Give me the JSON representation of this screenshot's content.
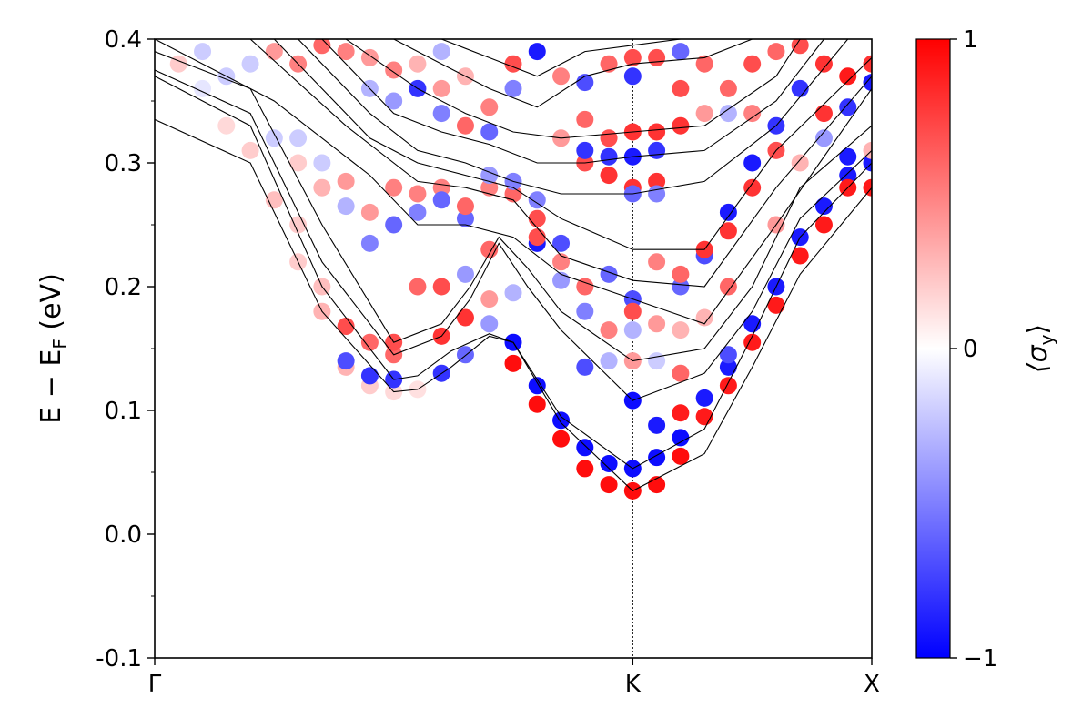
{
  "chart_data": {
    "type": "scatter",
    "ylabel": "E − E",
    "ylabel_subscript": "F",
    "ylabel_unit": " (eV)",
    "ylim": [
      -0.1,
      0.4
    ],
    "yticks": [
      -0.1,
      0.0,
      0.1,
      0.2,
      0.3,
      0.4
    ],
    "ytick_labels": [
      "-0.1",
      "0.0",
      "0.1",
      "0.2",
      "0.3",
      "0.4"
    ],
    "xlim": [
      0,
      1.5
    ],
    "xticks": [
      0,
      1.0,
      1.5
    ],
    "xtick_labels": [
      "Γ",
      "K",
      "X"
    ],
    "k_marker": 1.0,
    "colorbar": {
      "label_prefix": "⟨σ",
      "label_subscript": "y",
      "label_suffix": "⟩",
      "range": [
        -1,
        1
      ],
      "ticks": [
        1,
        0,
        -1
      ],
      "tick_labels": [
        "1",
        "0",
        "−1"
      ],
      "colors": {
        "low": "#0000ff",
        "mid": "#ffffff",
        "high": "#ff0000"
      }
    },
    "bands": [
      {
        "x": [
          0,
          0.2,
          0.35,
          0.5,
          0.55,
          0.62,
          0.7,
          0.75,
          0.85,
          1.0,
          1.15,
          1.25,
          1.35,
          1.5
        ],
        "y": [
          0.335,
          0.3,
          0.18,
          0.115,
          0.117,
          0.135,
          0.16,
          0.155,
          0.09,
          0.035,
          0.065,
          0.135,
          0.21,
          0.28
        ]
      },
      {
        "x": [
          0,
          0.2,
          0.35,
          0.5,
          0.55,
          0.62,
          0.7,
          0.75,
          0.85,
          1.0,
          1.15,
          1.25,
          1.35,
          1.5
        ],
        "y": [
          0.37,
          0.33,
          0.2,
          0.125,
          0.128,
          0.148,
          0.162,
          0.155,
          0.095,
          0.053,
          0.085,
          0.16,
          0.24,
          0.3
        ]
      },
      {
        "x": [
          0,
          0.2,
          0.35,
          0.5,
          0.6,
          0.66,
          0.72,
          0.78,
          0.85,
          1.0,
          1.15,
          1.25,
          1.35,
          1.5
        ],
        "y": [
          0.375,
          0.34,
          0.22,
          0.145,
          0.16,
          0.19,
          0.235,
          0.2,
          0.165,
          0.108,
          0.13,
          0.18,
          0.255,
          0.31
        ]
      },
      {
        "x": [
          0,
          0.2,
          0.35,
          0.5,
          0.6,
          0.66,
          0.72,
          0.78,
          0.85,
          1.0,
          1.15,
          1.25,
          1.35,
          1.5
        ],
        "y": [
          0.39,
          0.36,
          0.25,
          0.155,
          0.17,
          0.2,
          0.24,
          0.215,
          0.18,
          0.14,
          0.15,
          0.2,
          0.28,
          0.33
        ]
      },
      {
        "x": [
          0,
          0.25,
          0.45,
          0.55,
          0.65,
          0.75,
          0.85,
          1.0,
          1.15,
          1.3,
          1.5
        ],
        "y": [
          0.4,
          0.35,
          0.29,
          0.25,
          0.25,
          0.24,
          0.21,
          0.19,
          0.17,
          0.25,
          0.36
        ]
      },
      {
        "x": [
          0.2,
          0.4,
          0.55,
          0.65,
          0.75,
          0.85,
          1.0,
          1.15,
          1.3,
          1.5
        ],
        "y": [
          0.4,
          0.33,
          0.285,
          0.28,
          0.27,
          0.225,
          0.205,
          0.2,
          0.28,
          0.37
        ]
      },
      {
        "x": [
          0.25,
          0.45,
          0.55,
          0.65,
          0.75,
          0.85,
          1.0,
          1.15,
          1.3,
          1.5
        ],
        "y": [
          0.4,
          0.32,
          0.3,
          0.29,
          0.28,
          0.255,
          0.23,
          0.23,
          0.31,
          0.385
        ]
      },
      {
        "x": [
          0.3,
          0.45,
          0.55,
          0.65,
          0.75,
          0.85,
          1.0,
          1.15,
          1.3,
          1.45
        ],
        "y": [
          0.4,
          0.34,
          0.31,
          0.3,
          0.285,
          0.275,
          0.275,
          0.285,
          0.33,
          0.4
        ]
      },
      {
        "x": [
          0.35,
          0.5,
          0.6,
          0.7,
          0.8,
          0.9,
          1.0,
          1.15,
          1.3,
          1.4
        ],
        "y": [
          0.4,
          0.34,
          0.325,
          0.315,
          0.3,
          0.3,
          0.305,
          0.31,
          0.35,
          0.4
        ]
      },
      {
        "x": [
          0.4,
          0.55,
          0.65,
          0.75,
          0.85,
          1.0,
          1.15,
          1.3,
          1.35
        ],
        "y": [
          0.4,
          0.36,
          0.34,
          0.325,
          0.32,
          0.325,
          0.33,
          0.37,
          0.4
        ]
      },
      {
        "x": [
          0.5,
          0.6,
          0.7,
          0.8,
          0.9,
          1.0,
          1.15,
          1.25
        ],
        "y": [
          0.4,
          0.38,
          0.36,
          0.345,
          0.37,
          0.38,
          0.385,
          0.4
        ]
      },
      {
        "x": [
          0.6,
          0.7,
          0.8,
          0.9,
          1.0,
          1.1
        ],
        "y": [
          0.4,
          0.385,
          0.37,
          0.39,
          0.395,
          0.4
        ]
      }
    ],
    "points": [
      {
        "x": 0.5,
        "y": 0.115,
        "c": 0.15
      },
      {
        "x": 0.55,
        "y": 0.117,
        "c": 0.12
      },
      {
        "x": 0.45,
        "y": 0.12,
        "c": 0.2
      },
      {
        "x": 0.4,
        "y": 0.135,
        "c": 0.3
      },
      {
        "x": 0.5,
        "y": 0.125,
        "c": -0.8
      },
      {
        "x": 0.45,
        "y": 0.128,
        "c": -0.8
      },
      {
        "x": 0.4,
        "y": 0.14,
        "c": -0.7
      },
      {
        "x": 0.6,
        "y": 0.13,
        "c": -0.8
      },
      {
        "x": 0.65,
        "y": 0.145,
        "c": -0.6
      },
      {
        "x": 0.5,
        "y": 0.145,
        "c": 0.6
      },
      {
        "x": 0.5,
        "y": 0.155,
        "c": 0.7
      },
      {
        "x": 0.45,
        "y": 0.155,
        "c": 0.6
      },
      {
        "x": 0.4,
        "y": 0.168,
        "c": 0.7
      },
      {
        "x": 0.6,
        "y": 0.16,
        "c": 0.8
      },
      {
        "x": 0.65,
        "y": 0.175,
        "c": 0.8
      },
      {
        "x": 0.7,
        "y": 0.17,
        "c": -0.4
      },
      {
        "x": 0.7,
        "y": 0.19,
        "c": 0.4
      },
      {
        "x": 0.35,
        "y": 0.18,
        "c": 0.3
      },
      {
        "x": 0.35,
        "y": 0.2,
        "c": 0.25
      },
      {
        "x": 0.3,
        "y": 0.22,
        "c": 0.2
      },
      {
        "x": 0.75,
        "y": 0.155,
        "c": -0.95
      },
      {
        "x": 0.75,
        "y": 0.138,
        "c": 0.95
      },
      {
        "x": 0.8,
        "y": 0.12,
        "c": -0.95
      },
      {
        "x": 0.8,
        "y": 0.105,
        "c": 0.95
      },
      {
        "x": 0.85,
        "y": 0.092,
        "c": -0.95
      },
      {
        "x": 0.85,
        "y": 0.077,
        "c": 0.95
      },
      {
        "x": 0.9,
        "y": 0.07,
        "c": -0.95
      },
      {
        "x": 0.9,
        "y": 0.053,
        "c": 0.95
      },
      {
        "x": 0.95,
        "y": 0.057,
        "c": -0.95
      },
      {
        "x": 0.95,
        "y": 0.04,
        "c": 0.95
      },
      {
        "x": 1.0,
        "y": 0.053,
        "c": -0.95
      },
      {
        "x": 1.0,
        "y": 0.035,
        "c": 0.95
      },
      {
        "x": 1.05,
        "y": 0.062,
        "c": -0.95
      },
      {
        "x": 1.05,
        "y": 0.04,
        "c": 0.95
      },
      {
        "x": 1.1,
        "y": 0.078,
        "c": -0.95
      },
      {
        "x": 1.1,
        "y": 0.063,
        "c": 0.95
      },
      {
        "x": 1.0,
        "y": 0.108,
        "c": -0.95
      },
      {
        "x": 1.05,
        "y": 0.088,
        "c": -0.9
      },
      {
        "x": 1.1,
        "y": 0.098,
        "c": 0.9
      },
      {
        "x": 1.15,
        "y": 0.11,
        "c": -0.9
      },
      {
        "x": 1.15,
        "y": 0.095,
        "c": 0.9
      },
      {
        "x": 1.2,
        "y": 0.135,
        "c": -0.9
      },
      {
        "x": 1.2,
        "y": 0.12,
        "c": 0.9
      },
      {
        "x": 1.25,
        "y": 0.17,
        "c": -0.9
      },
      {
        "x": 1.25,
        "y": 0.155,
        "c": 0.9
      },
      {
        "x": 1.3,
        "y": 0.2,
        "c": -0.9
      },
      {
        "x": 1.3,
        "y": 0.185,
        "c": 0.9
      },
      {
        "x": 1.35,
        "y": 0.24,
        "c": -0.9
      },
      {
        "x": 1.35,
        "y": 0.225,
        "c": 0.9
      },
      {
        "x": 1.4,
        "y": 0.265,
        "c": -0.9
      },
      {
        "x": 1.4,
        "y": 0.25,
        "c": 0.9
      },
      {
        "x": 1.45,
        "y": 0.29,
        "c": -0.9
      },
      {
        "x": 1.45,
        "y": 0.28,
        "c": 0.9
      },
      {
        "x": 1.5,
        "y": 0.3,
        "c": -0.9
      },
      {
        "x": 1.5,
        "y": 0.28,
        "c": 0.9
      },
      {
        "x": 1.45,
        "y": 0.305,
        "c": -0.9
      },
      {
        "x": 1.4,
        "y": 0.34,
        "c": 0.8
      },
      {
        "x": 1.45,
        "y": 0.345,
        "c": -0.8
      },
      {
        "x": 1.5,
        "y": 0.365,
        "c": -0.9
      },
      {
        "x": 1.45,
        "y": 0.37,
        "c": 0.9
      },
      {
        "x": 1.5,
        "y": 0.38,
        "c": 0.8
      },
      {
        "x": 1.4,
        "y": 0.38,
        "c": 0.8
      },
      {
        "x": 1.35,
        "y": 0.36,
        "c": -0.8
      },
      {
        "x": 1.3,
        "y": 0.33,
        "c": -0.8
      },
      {
        "x": 1.25,
        "y": 0.3,
        "c": -0.9
      },
      {
        "x": 1.2,
        "y": 0.26,
        "c": -0.9
      },
      {
        "x": 1.15,
        "y": 0.225,
        "c": -0.7
      },
      {
        "x": 1.1,
        "y": 0.2,
        "c": -0.6
      },
      {
        "x": 1.25,
        "y": 0.28,
        "c": 0.8
      },
      {
        "x": 1.3,
        "y": 0.31,
        "c": 0.7
      },
      {
        "x": 1.2,
        "y": 0.245,
        "c": 0.8
      },
      {
        "x": 1.15,
        "y": 0.23,
        "c": 0.8
      },
      {
        "x": 1.1,
        "y": 0.21,
        "c": 0.6
      },
      {
        "x": 1.05,
        "y": 0.22,
        "c": 0.5
      },
      {
        "x": 1.0,
        "y": 0.19,
        "c": -0.7
      },
      {
        "x": 1.0,
        "y": 0.18,
        "c": 0.7
      },
      {
        "x": 0.95,
        "y": 0.21,
        "c": -0.6
      },
      {
        "x": 0.9,
        "y": 0.2,
        "c": 0.6
      },
      {
        "x": 0.85,
        "y": 0.235,
        "c": -0.7
      },
      {
        "x": 0.85,
        "y": 0.22,
        "c": 0.5
      },
      {
        "x": 0.8,
        "y": 0.255,
        "c": 0.7
      },
      {
        "x": 0.8,
        "y": 0.27,
        "c": -0.5
      },
      {
        "x": 0.75,
        "y": 0.275,
        "c": 0.6
      },
      {
        "x": 0.75,
        "y": 0.285,
        "c": -0.5
      },
      {
        "x": 0.7,
        "y": 0.28,
        "c": 0.5
      },
      {
        "x": 0.7,
        "y": 0.29,
        "c": -0.4
      },
      {
        "x": 0.65,
        "y": 0.255,
        "c": -0.6
      },
      {
        "x": 0.65,
        "y": 0.265,
        "c": 0.6
      },
      {
        "x": 0.6,
        "y": 0.28,
        "c": 0.5
      },
      {
        "x": 0.6,
        "y": 0.27,
        "c": -0.6
      },
      {
        "x": 0.55,
        "y": 0.26,
        "c": -0.5
      },
      {
        "x": 0.55,
        "y": 0.275,
        "c": 0.5
      },
      {
        "x": 0.5,
        "y": 0.25,
        "c": -0.6
      },
      {
        "x": 0.5,
        "y": 0.28,
        "c": 0.5
      },
      {
        "x": 0.45,
        "y": 0.26,
        "c": 0.4
      },
      {
        "x": 0.45,
        "y": 0.235,
        "c": -0.5
      },
      {
        "x": 0.4,
        "y": 0.265,
        "c": -0.3
      },
      {
        "x": 0.4,
        "y": 0.285,
        "c": 0.4
      },
      {
        "x": 0.9,
        "y": 0.3,
        "c": 0.7
      },
      {
        "x": 0.9,
        "y": 0.31,
        "c": -0.8
      },
      {
        "x": 0.95,
        "y": 0.305,
        "c": -0.8
      },
      {
        "x": 1.0,
        "y": 0.305,
        "c": -0.9
      },
      {
        "x": 1.05,
        "y": 0.31,
        "c": -0.8
      },
      {
        "x": 0.95,
        "y": 0.29,
        "c": 0.8
      },
      {
        "x": 1.0,
        "y": 0.28,
        "c": 0.8
      },
      {
        "x": 1.05,
        "y": 0.285,
        "c": 0.8
      },
      {
        "x": 1.0,
        "y": 0.275,
        "c": -0.6
      },
      {
        "x": 1.05,
        "y": 0.275,
        "c": -0.5
      },
      {
        "x": 0.95,
        "y": 0.32,
        "c": 0.7
      },
      {
        "x": 1.0,
        "y": 0.325,
        "c": 0.8
      },
      {
        "x": 1.05,
        "y": 0.325,
        "c": 0.8
      },
      {
        "x": 1.1,
        "y": 0.33,
        "c": 0.8
      },
      {
        "x": 0.9,
        "y": 0.335,
        "c": 0.6
      },
      {
        "x": 0.85,
        "y": 0.32,
        "c": 0.4
      },
      {
        "x": 1.0,
        "y": 0.37,
        "c": -0.8
      },
      {
        "x": 1.05,
        "y": 0.385,
        "c": 0.7
      },
      {
        "x": 1.0,
        "y": 0.385,
        "c": 0.7
      },
      {
        "x": 0.95,
        "y": 0.38,
        "c": 0.6
      },
      {
        "x": 0.9,
        "y": 0.365,
        "c": -0.7
      },
      {
        "x": 0.85,
        "y": 0.37,
        "c": 0.5
      },
      {
        "x": 1.1,
        "y": 0.36,
        "c": 0.7
      },
      {
        "x": 1.1,
        "y": 0.39,
        "c": -0.6
      },
      {
        "x": 1.15,
        "y": 0.38,
        "c": 0.6
      },
      {
        "x": 0.8,
        "y": 0.39,
        "c": -0.9
      },
      {
        "x": 0.75,
        "y": 0.38,
        "c": 0.7
      },
      {
        "x": 0.75,
        "y": 0.36,
        "c": -0.5
      },
      {
        "x": 0.7,
        "y": 0.345,
        "c": 0.5
      },
      {
        "x": 0.7,
        "y": 0.325,
        "c": -0.6
      },
      {
        "x": 0.65,
        "y": 0.33,
        "c": 0.6
      },
      {
        "x": 0.6,
        "y": 0.34,
        "c": -0.5
      },
      {
        "x": 0.6,
        "y": 0.36,
        "c": 0.4
      },
      {
        "x": 0.55,
        "y": 0.36,
        "c": -0.8
      },
      {
        "x": 0.5,
        "y": 0.375,
        "c": 0.5
      },
      {
        "x": 0.5,
        "y": 0.35,
        "c": -0.4
      },
      {
        "x": 0.45,
        "y": 0.36,
        "c": -0.3
      },
      {
        "x": 0.45,
        "y": 0.385,
        "c": 0.4
      },
      {
        "x": 0.55,
        "y": 0.38,
        "c": 0.3
      },
      {
        "x": 0.65,
        "y": 0.37,
        "c": 0.3
      },
      {
        "x": 0.6,
        "y": 0.39,
        "c": -0.3
      },
      {
        "x": 0.4,
        "y": 0.39,
        "c": 0.5
      },
      {
        "x": 0.35,
        "y": 0.395,
        "c": 0.6
      },
      {
        "x": 0.3,
        "y": 0.38,
        "c": 0.5
      },
      {
        "x": 0.25,
        "y": 0.39,
        "c": 0.4
      },
      {
        "x": 0.2,
        "y": 0.38,
        "c": -0.2
      },
      {
        "x": 0.15,
        "y": 0.37,
        "c": -0.2
      },
      {
        "x": 0.1,
        "y": 0.36,
        "c": -0.1
      },
      {
        "x": 0.05,
        "y": 0.38,
        "c": 0.2
      },
      {
        "x": 0.1,
        "y": 0.39,
        "c": -0.2
      },
      {
        "x": 0.2,
        "y": 0.31,
        "c": 0.2
      },
      {
        "x": 0.25,
        "y": 0.27,
        "c": 0.25
      },
      {
        "x": 0.3,
        "y": 0.25,
        "c": 0.2
      },
      {
        "x": 0.15,
        "y": 0.33,
        "c": 0.15
      },
      {
        "x": 0.25,
        "y": 0.32,
        "c": -0.2
      },
      {
        "x": 0.3,
        "y": 0.3,
        "c": 0.2
      },
      {
        "x": 0.35,
        "y": 0.28,
        "c": 0.3
      },
      {
        "x": 0.35,
        "y": 0.3,
        "c": -0.2
      },
      {
        "x": 0.3,
        "y": 0.32,
        "c": -0.2
      },
      {
        "x": 1.2,
        "y": 0.36,
        "c": 0.6
      },
      {
        "x": 1.25,
        "y": 0.38,
        "c": 0.7
      },
      {
        "x": 1.3,
        "y": 0.39,
        "c": 0.6
      },
      {
        "x": 1.35,
        "y": 0.395,
        "c": 0.7
      },
      {
        "x": 1.2,
        "y": 0.34,
        "c": -0.3
      },
      {
        "x": 1.15,
        "y": 0.34,
        "c": 0.4
      },
      {
        "x": 1.25,
        "y": 0.34,
        "c": 0.5
      },
      {
        "x": 1.3,
        "y": 0.25,
        "c": 0.4
      },
      {
        "x": 1.35,
        "y": 0.3,
        "c": 0.3
      },
      {
        "x": 1.4,
        "y": 0.32,
        "c": -0.4
      },
      {
        "x": 1.5,
        "y": 0.31,
        "c": 0.3
      },
      {
        "x": 1.2,
        "y": 0.2,
        "c": 0.6
      },
      {
        "x": 1.15,
        "y": 0.175,
        "c": 0.3
      },
      {
        "x": 1.2,
        "y": 0.145,
        "c": -0.7
      },
      {
        "x": 1.1,
        "y": 0.165,
        "c": 0.3
      },
      {
        "x": 1.05,
        "y": 0.17,
        "c": 0.4
      },
      {
        "x": 1.0,
        "y": 0.165,
        "c": -0.3
      },
      {
        "x": 1.05,
        "y": 0.14,
        "c": -0.2
      },
      {
        "x": 1.1,
        "y": 0.13,
        "c": 0.6
      },
      {
        "x": 1.0,
        "y": 0.14,
        "c": 0.4
      },
      {
        "x": 0.95,
        "y": 0.14,
        "c": -0.3
      },
      {
        "x": 0.9,
        "y": 0.18,
        "c": -0.5
      },
      {
        "x": 0.95,
        "y": 0.165,
        "c": 0.5
      },
      {
        "x": 0.9,
        "y": 0.135,
        "c": -0.7
      },
      {
        "x": 0.55,
        "y": 0.2,
        "c": 0.6
      },
      {
        "x": 0.6,
        "y": 0.2,
        "c": 0.7
      },
      {
        "x": 0.65,
        "y": 0.21,
        "c": -0.4
      },
      {
        "x": 0.7,
        "y": 0.23,
        "c": 0.6
      },
      {
        "x": 0.75,
        "y": 0.195,
        "c": -0.3
      },
      {
        "x": 0.8,
        "y": 0.235,
        "c": -0.9
      },
      {
        "x": 0.8,
        "y": 0.24,
        "c": 0.7
      },
      {
        "x": 0.85,
        "y": 0.205,
        "c": -0.4
      }
    ]
  }
}
